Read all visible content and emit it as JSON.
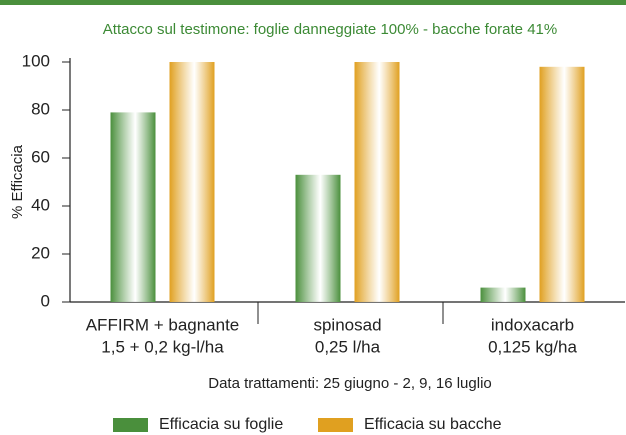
{
  "chart_data": {
    "type": "bar",
    "title": "Attacco sul testimone: foglie danneggiate 100% - bacche forate 41%",
    "categories": [
      [
        "AFFIRM + bagnante",
        "1,5 + 0,2 kg-l/ha"
      ],
      [
        "spinosad",
        "0,25 l/ha"
      ],
      [
        "indoxacarb",
        "0,125 kg/ha"
      ]
    ],
    "series": [
      {
        "name": "Efficacia su foglie",
        "color": "#4a8f3c",
        "values": [
          79,
          53,
          6
        ]
      },
      {
        "name": "Efficacia su bacche",
        "color": "#e0a020",
        "values": [
          100,
          100,
          98
        ]
      }
    ],
    "x_label": "Data trattamenti: 25 giugno - 2, 9, 16 luglio",
    "y_label": "% Efficacia",
    "ylim": [
      0,
      100
    ],
    "yticks": [
      0,
      20,
      40,
      60,
      80,
      100
    ],
    "grid": false,
    "legend": "bottom"
  }
}
